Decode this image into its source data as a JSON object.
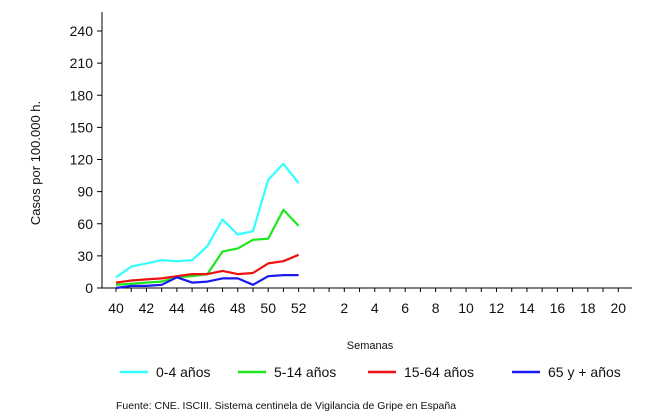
{
  "chart_data": {
    "type": "line",
    "ylabel": "Casos por 100.000 h.",
    "xlabel": "Semanas",
    "x_ticks": [
      "40",
      "42",
      "44",
      "46",
      "48",
      "50",
      "52",
      "2",
      "4",
      "6",
      "8",
      "10",
      "12",
      "14",
      "16",
      "18",
      "20"
    ],
    "x_range": [
      "40",
      "20"
    ],
    "ylim": [
      0,
      255
    ],
    "y_ticks": [
      0,
      30,
      60,
      90,
      120,
      150,
      180,
      210,
      240
    ],
    "grid": false,
    "legend_position": "bottom",
    "series": [
      {
        "name": "0-4 años",
        "color": "#33ffff",
        "x": [
          40,
          41,
          42,
          43,
          44,
          45,
          46,
          47,
          48,
          49,
          50,
          51,
          52
        ],
        "values": [
          10,
          20,
          23,
          26,
          25,
          26,
          39,
          64,
          50,
          53,
          101,
          116,
          98
        ]
      },
      {
        "name": "5-14 años",
        "color": "#1ee61e",
        "x": [
          40,
          41,
          42,
          43,
          44,
          45,
          46,
          47,
          48,
          49,
          50,
          51,
          52
        ],
        "values": [
          3,
          4,
          5,
          6,
          10,
          11,
          13,
          34,
          37,
          45,
          46,
          73,
          58
        ]
      },
      {
        "name": "15-64 años",
        "color": "#ee1111",
        "x": [
          40,
          41,
          42,
          43,
          44,
          45,
          46,
          47,
          48,
          49,
          50,
          51,
          52
        ],
        "values": [
          5,
          7,
          8,
          9,
          11,
          13,
          13,
          16,
          13,
          14,
          23,
          25,
          31
        ]
      },
      {
        "name": "65 y + años",
        "color": "#1a1aee",
        "x": [
          40,
          41,
          42,
          43,
          44,
          45,
          46,
          47,
          48,
          49,
          50,
          51,
          52
        ],
        "values": [
          0,
          2,
          2,
          3,
          10,
          5,
          6,
          9,
          9,
          3,
          11,
          12,
          12
        ]
      }
    ]
  },
  "source": "Fuente: CNE. ISCIII. Sistema centinela de Vigilancia de Gripe en España"
}
